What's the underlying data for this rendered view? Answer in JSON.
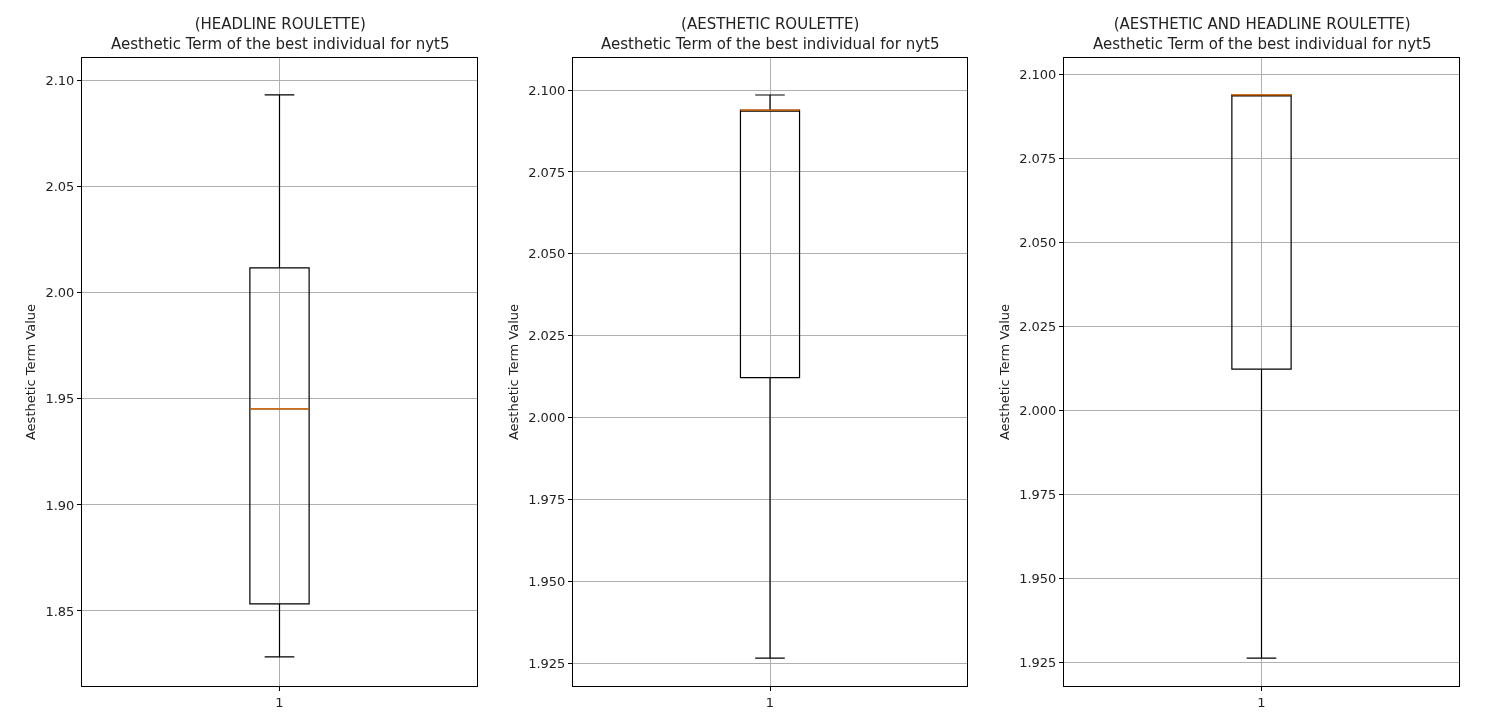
{
  "chart_data": [
    {
      "type": "box",
      "title": "(HEADLINE ROULETTE)",
      "subtitle": "Aesthetic Term of the best individual for nyt5",
      "ylabel": "Aesthetic Term Value",
      "categories": [
        "1"
      ],
      "boxes": [
        {
          "low": 1.8283,
          "q1": 1.8533,
          "median": 1.9453,
          "q3": 2.0118,
          "high": 2.0934
        }
      ],
      "color": "#000000",
      "ylim": [
        1.8146,
        2.1108
      ],
      "yticks": [
        1.85,
        {
          "value": 1.9,
          "label": "1.90"
        },
        1.95,
        {
          "value": 2.0,
          "label": "2.00"
        },
        2.05,
        {
          "value": 2.1,
          "label": "2.10"
        }
      ],
      "grid": true
    },
    {
      "type": "box",
      "title": "(AESTHETIC ROULETTE)",
      "subtitle": "Aesthetic Term of the best individual for nyt5",
      "ylabel": "Aesthetic Term Value",
      "categories": [
        "1"
      ],
      "boxes": [
        {
          "low": 1.9265,
          "q1": 2.0122,
          "median": 2.0939,
          "q3": 2.0939,
          "high": 2.0985
        }
      ],
      "color": "#000000",
      "ylim": [
        1.918,
        2.1098
      ],
      "yticks": [
        1.925,
        {
          "value": 1.95,
          "label": "1.950"
        },
        1.975,
        {
          "value": 2.0,
          "label": "2.000"
        },
        2.025,
        {
          "value": 2.05,
          "label": "2.050"
        },
        2.075,
        {
          "value": 2.1,
          "label": "2.100"
        }
      ],
      "grid": true
    },
    {
      "type": "box",
      "title": "(AESTHETIC AND HEADLINE ROULETTE)",
      "subtitle": "Aesthetic Term of the best individual for nyt5",
      "ylabel": "Aesthetic Term Value",
      "categories": [
        "1"
      ],
      "boxes": [
        {
          "low": 1.9262,
          "q1": 2.0122,
          "median": 2.0938,
          "q3": 2.0938,
          "high": 2.0938
        }
      ],
      "color": "#000000",
      "ylim": [
        1.9179,
        2.1048
      ],
      "yticks": [
        1.925,
        {
          "value": 1.95,
          "label": "1.950"
        },
        1.975,
        {
          "value": 2.0,
          "label": "2.000"
        },
        2.025,
        {
          "value": 2.05,
          "label": "2.050"
        },
        2.075,
        {
          "value": 2.1,
          "label": "2.100"
        }
      ],
      "grid": true
    }
  ]
}
